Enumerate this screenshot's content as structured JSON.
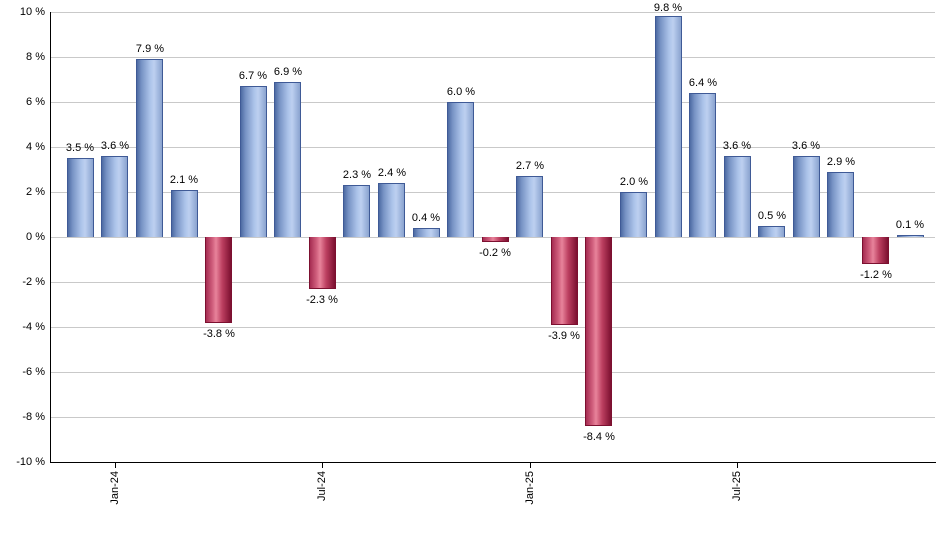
{
  "chart_data": {
    "type": "bar",
    "title": "",
    "xlabel": "",
    "ylabel": "",
    "unit": "%",
    "ylim": [
      -10,
      10
    ],
    "grid": true,
    "legend": "none",
    "bars": [
      {
        "value": 3.5,
        "label": "3.5 %"
      },
      {
        "value": 3.6,
        "label": "3.6 %"
      },
      {
        "value": 7.9,
        "label": "7.9 %"
      },
      {
        "value": 2.1,
        "label": "2.1 %"
      },
      {
        "value": -3.8,
        "label": "-3.8 %"
      },
      {
        "value": 6.7,
        "label": "6.7 %"
      },
      {
        "value": 6.9,
        "label": "6.9 %"
      },
      {
        "value": -2.3,
        "label": "-2.3 %"
      },
      {
        "value": 2.3,
        "label": "2.3 %"
      },
      {
        "value": 2.4,
        "label": "2.4 %"
      },
      {
        "value": 0.4,
        "label": "0.4 %"
      },
      {
        "value": 6.0,
        "label": "6.0 %"
      },
      {
        "value": -0.2,
        "label": "-0.2 %"
      },
      {
        "value": 2.7,
        "label": "2.7 %"
      },
      {
        "value": -3.9,
        "label": "-3.9 %"
      },
      {
        "value": -8.4,
        "label": "-8.4 %"
      },
      {
        "value": 2.0,
        "label": "2.0 %"
      },
      {
        "value": 9.8,
        "label": "9.8 %"
      },
      {
        "value": 6.4,
        "label": "6.4 %"
      },
      {
        "value": 3.6,
        "label": "3.6 %"
      },
      {
        "value": 0.5,
        "label": "0.5 %"
      },
      {
        "value": 3.6,
        "label": "3.6 %"
      },
      {
        "value": 2.9,
        "label": "2.9 %"
      },
      {
        "value": -1.2,
        "label": "-1.2 %"
      },
      {
        "value": 0.1,
        "label": "0.1 %"
      }
    ],
    "x_ticks": [
      {
        "bar_index": 1,
        "label": "Jan-24"
      },
      {
        "bar_index": 7,
        "label": "Jul-24"
      },
      {
        "bar_index": 13,
        "label": "Jan-25"
      },
      {
        "bar_index": 19,
        "label": "Jul-25"
      }
    ],
    "y_ticks": [
      {
        "value": 10,
        "label": "10 %"
      },
      {
        "value": 8,
        "label": "8 %"
      },
      {
        "value": 6,
        "label": "6 %"
      },
      {
        "value": 4,
        "label": "4 %"
      },
      {
        "value": 2,
        "label": "2 %"
      },
      {
        "value": 0,
        "label": "0 %"
      },
      {
        "value": -2,
        "label": "-2 %"
      },
      {
        "value": -4,
        "label": "-4 %"
      },
      {
        "value": -6,
        "label": "-6 %"
      },
      {
        "value": -8,
        "label": "-8 %"
      },
      {
        "value": -10,
        "label": "-10 %"
      }
    ],
    "colors": {
      "positive_light": "#bdd0f0",
      "positive_dark": "#4d6ba3",
      "positive_border": "#3f5a96",
      "negative_light": "#e8839b",
      "negative_dark": "#7c1030",
      "negative_border": "#7c1030",
      "gridline": "#c9c9c9",
      "axis": "#000000",
      "text": "#000000",
      "background": "#ffffff"
    }
  }
}
